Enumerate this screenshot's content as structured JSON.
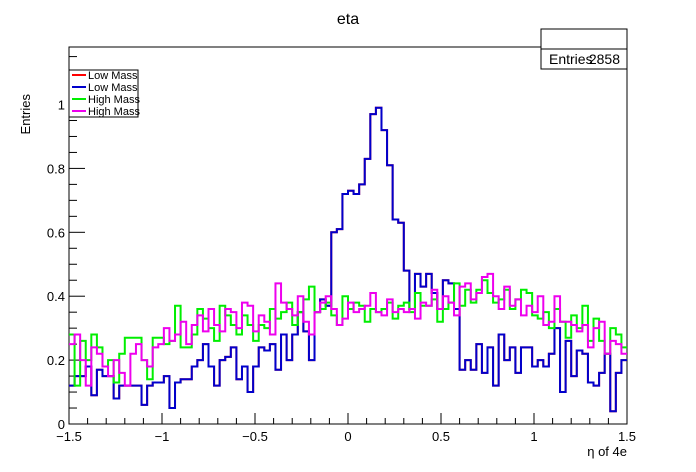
{
  "chart_data": {
    "type": "histogram-step",
    "title": "eta",
    "xlabel": "η of 4e",
    "ylabel": "Entries",
    "xlim": [
      -1.5,
      1.5
    ],
    "ylim": [
      0,
      1.18
    ],
    "x_ticks": [
      -1.5,
      -1,
      -0.5,
      0,
      0.5,
      1,
      1.5
    ],
    "x_tick_labels": [
      "−1.5",
      "−1",
      "−0.5",
      "0",
      "0.5",
      "1",
      "1.5"
    ],
    "y_ticks": [
      0,
      0.2,
      0.4,
      0.6,
      0.8,
      1
    ],
    "y_tick_labels": [
      "0",
      "0.2",
      "0.4",
      "0.6",
      "0.8",
      "1"
    ],
    "bins": 100,
    "legend": {
      "position": "top-left",
      "entries": [
        {
          "label": "Low Mass",
          "color": "#ff0000"
        },
        {
          "label": "Low Mass",
          "color": "#0000cc"
        },
        {
          "label": "High Mass",
          "color": "#00ee00"
        },
        {
          "label": "High Mass",
          "color": "#ee00ee"
        }
      ]
    },
    "stats": {
      "label": "Entries",
      "value": "2858"
    },
    "series": [
      {
        "name": "Low Mass",
        "color": "#ff0000",
        "values": [
          0.12,
          0.15,
          0.15,
          0.18,
          0.09,
          0.17,
          0.15,
          0.15,
          0.08,
          0.12,
          0.12,
          0.12,
          0.12,
          0.06,
          0.12,
          0.13,
          0.13,
          0.15,
          0.05,
          0.13,
          0.14,
          0.14,
          0.18,
          0.2,
          0.25,
          0.18,
          0.12,
          0.2,
          0.21,
          0.24,
          0.14,
          0.18,
          0.1,
          0.18,
          0.24,
          0.23,
          0.25,
          0.17,
          0.28,
          0.2,
          0.28,
          0.35,
          0.29,
          0.2,
          0.35,
          0.39,
          0.37,
          0.6,
          0.61,
          0.72,
          0.73,
          0.72,
          0.75,
          0.83,
          0.97,
          0.99,
          0.92,
          0.81,
          0.64,
          0.63,
          0.48,
          0.36,
          0.47,
          0.43,
          0.47,
          0.41,
          0.36,
          0.45,
          0.44,
          0.36,
          0.17,
          0.2,
          0.17,
          0.25,
          0.16,
          0.24,
          0.12,
          0.28,
          0.2,
          0.24,
          0.16,
          0.24,
          0.24,
          0.18,
          0.2,
          0.18,
          0.22,
          0.3,
          0.1,
          0.26,
          0.15,
          0.23,
          0.22,
          0.13,
          0.12,
          0.16,
          0.22,
          0.04,
          0.16,
          0.2
        ]
      },
      {
        "name": "Low Mass",
        "color": "#0000cc",
        "values": [
          0.12,
          0.15,
          0.15,
          0.18,
          0.09,
          0.17,
          0.15,
          0.15,
          0.08,
          0.12,
          0.12,
          0.12,
          0.12,
          0.06,
          0.12,
          0.13,
          0.13,
          0.15,
          0.05,
          0.13,
          0.14,
          0.14,
          0.18,
          0.2,
          0.25,
          0.18,
          0.12,
          0.2,
          0.21,
          0.24,
          0.14,
          0.18,
          0.1,
          0.18,
          0.24,
          0.23,
          0.25,
          0.17,
          0.28,
          0.2,
          0.28,
          0.35,
          0.29,
          0.2,
          0.35,
          0.39,
          0.37,
          0.6,
          0.61,
          0.72,
          0.73,
          0.72,
          0.75,
          0.83,
          0.97,
          0.99,
          0.92,
          0.81,
          0.64,
          0.63,
          0.48,
          0.36,
          0.47,
          0.43,
          0.47,
          0.41,
          0.36,
          0.45,
          0.44,
          0.36,
          0.17,
          0.2,
          0.17,
          0.25,
          0.16,
          0.24,
          0.12,
          0.28,
          0.2,
          0.24,
          0.16,
          0.24,
          0.24,
          0.18,
          0.2,
          0.18,
          0.22,
          0.3,
          0.1,
          0.26,
          0.15,
          0.23,
          0.22,
          0.13,
          0.12,
          0.16,
          0.22,
          0.04,
          0.16,
          0.2
        ]
      },
      {
        "name": "High Mass",
        "color": "#00ee00",
        "values": [
          0.28,
          0.12,
          0.26,
          0.2,
          0.28,
          0.24,
          0.18,
          0.2,
          0.13,
          0.22,
          0.27,
          0.27,
          0.27,
          0.2,
          0.14,
          0.27,
          0.27,
          0.25,
          0.26,
          0.37,
          0.24,
          0.24,
          0.28,
          0.36,
          0.33,
          0.3,
          0.26,
          0.37,
          0.34,
          0.31,
          0.28,
          0.34,
          0.31,
          0.26,
          0.31,
          0.3,
          0.36,
          0.33,
          0.35,
          0.38,
          0.31,
          0.35,
          0.39,
          0.43,
          0.35,
          0.36,
          0.38,
          0.34,
          0.31,
          0.4,
          0.36,
          0.38,
          0.37,
          0.32,
          0.36,
          0.35,
          0.36,
          0.38,
          0.33,
          0.37,
          0.38,
          0.35,
          0.41,
          0.37,
          0.37,
          0.39,
          0.32,
          0.36,
          0.38,
          0.44,
          0.37,
          0.42,
          0.38,
          0.42,
          0.45,
          0.41,
          0.38,
          0.39,
          0.42,
          0.36,
          0.39,
          0.42,
          0.41,
          0.34,
          0.33,
          0.35,
          0.3,
          0.36,
          0.32,
          0.27,
          0.34,
          0.3,
          0.37,
          0.26,
          0.33,
          0.26,
          0.22,
          0.3,
          0.28,
          0.24
        ]
      },
      {
        "name": "High Mass",
        "color": "#ee00ee",
        "values": [
          0.25,
          0.28,
          0.2,
          0.12,
          0.24,
          0.22,
          0.18,
          0.15,
          0.2,
          0.16,
          0.12,
          0.22,
          0.25,
          0.2,
          0.18,
          0.24,
          0.25,
          0.3,
          0.26,
          0.28,
          0.32,
          0.25,
          0.31,
          0.34,
          0.29,
          0.36,
          0.31,
          0.29,
          0.36,
          0.35,
          0.3,
          0.38,
          0.37,
          0.29,
          0.34,
          0.32,
          0.28,
          0.44,
          0.38,
          0.36,
          0.34,
          0.4,
          0.32,
          0.28,
          0.35,
          0.38,
          0.4,
          0.36,
          0.31,
          0.33,
          0.38,
          0.35,
          0.36,
          0.37,
          0.41,
          0.35,
          0.34,
          0.39,
          0.35,
          0.36,
          0.35,
          0.36,
          0.33,
          0.38,
          0.37,
          0.42,
          0.36,
          0.4,
          0.38,
          0.34,
          0.43,
          0.44,
          0.39,
          0.41,
          0.46,
          0.47,
          0.4,
          0.36,
          0.43,
          0.37,
          0.39,
          0.34,
          0.37,
          0.35,
          0.4,
          0.31,
          0.32,
          0.4,
          0.32,
          0.32,
          0.31,
          0.29,
          0.31,
          0.24,
          0.3,
          0.32,
          0.22,
          0.26,
          0.25,
          0.22
        ]
      }
    ]
  }
}
